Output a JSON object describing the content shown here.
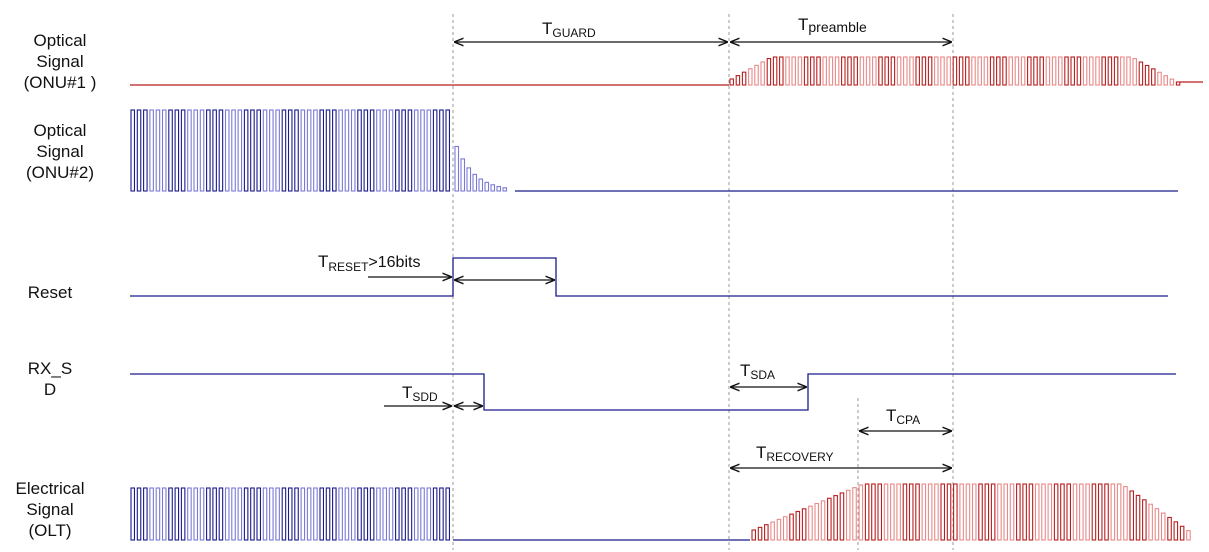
{
  "signals": {
    "onu1": {
      "lines": [
        "Optical",
        "Signal",
        "(ONU#1 )"
      ]
    },
    "onu2": {
      "lines": [
        "Optical",
        "Signal",
        "(ONU#2)"
      ]
    },
    "reset": {
      "lines": [
        "Reset"
      ]
    },
    "rxsd": {
      "lines": [
        "RX_S",
        "D"
      ]
    },
    "olt": {
      "lines": [
        "Electrical",
        "Signal",
        "(OLT)"
      ]
    }
  },
  "timings": {
    "guard": {
      "main": "T",
      "sub": "GUARD",
      "suffix": ""
    },
    "preamble": {
      "main": "T",
      "sub": "preamble",
      "suffix": ""
    },
    "reset": {
      "main": "T",
      "sub": "RESET",
      "suffix": ">16bits"
    },
    "sdd": {
      "main": "T",
      "sub": "SDD",
      "suffix": ""
    },
    "sda": {
      "main": "T",
      "sub": "SDA",
      "suffix": ""
    },
    "cpa": {
      "main": "T",
      "sub": "CPA",
      "suffix": ""
    },
    "recovery": {
      "main": "T",
      "sub": "RECOVERY",
      "suffix": ""
    }
  },
  "colors": {
    "blue_trace": "#1a1a8c",
    "blue_light": "#7a7ad6",
    "red_trace": "#b81e1e",
    "red_light": "#e88a8a",
    "axis": "#222222",
    "dashed": "#999999"
  }
}
